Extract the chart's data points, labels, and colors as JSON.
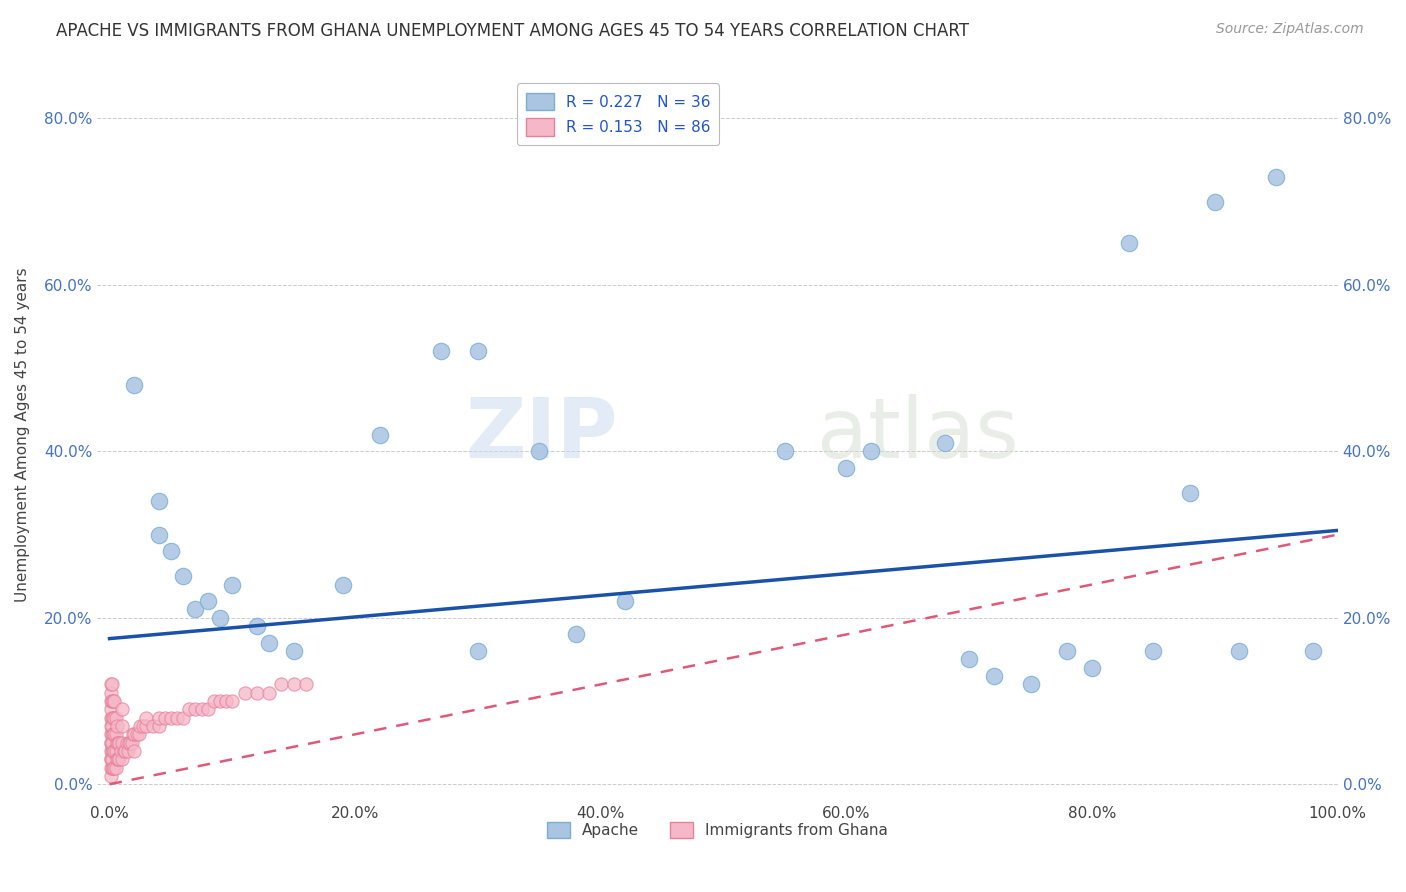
{
  "title": "APACHE VS IMMIGRANTS FROM GHANA UNEMPLOYMENT AMONG AGES 45 TO 54 YEARS CORRELATION CHART",
  "source": "Source: ZipAtlas.com",
  "xlabel": "",
  "ylabel": "Unemployment Among Ages 45 to 54 years",
  "xlim": [
    -0.01,
    1.0
  ],
  "ylim": [
    -0.02,
    0.86
  ],
  "xticks": [
    0.0,
    0.2,
    0.4,
    0.6,
    0.8,
    1.0
  ],
  "yticks": [
    0.0,
    0.2,
    0.4,
    0.6,
    0.8
  ],
  "xtick_labels": [
    "0.0%",
    "20.0%",
    "40.0%",
    "60.0%",
    "80.0%",
    "100.0%"
  ],
  "ytick_labels": [
    "0.0%",
    "20.0%",
    "40.0%",
    "60.0%",
    "80.0%"
  ],
  "background_color": "#ffffff",
  "watermark_zip": "ZIP",
  "watermark_atlas": "atlas",
  "apache_color": "#aac4e2",
  "ghana_color": "#f5b8c8",
  "apache_edge_color": "#7aafd4",
  "ghana_edge_color": "#e8809a",
  "trend_apache_color": "#1a52a8",
  "trend_ghana_color": "#e05878",
  "apache_trend_start_y": 0.175,
  "apache_trend_end_y": 0.305,
  "ghana_trend_start_y": 0.0,
  "ghana_trend_end_y": 0.3,
  "legend_apache_R": "R = 0.227",
  "legend_apache_N": "N = 36",
  "legend_ghana_R": "R = 0.153",
  "legend_ghana_N": "N = 86",
  "legend_label_apache": "Apache",
  "legend_label_ghana": "Immigrants from Ghana",
  "apache_x": [
    0.02,
    0.04,
    0.04,
    0.05,
    0.06,
    0.07,
    0.08,
    0.09,
    0.1,
    0.12,
    0.13,
    0.15,
    0.19,
    0.22,
    0.27,
    0.3,
    0.3,
    0.35,
    0.38,
    0.42,
    0.55,
    0.6,
    0.62,
    0.68,
    0.7,
    0.72,
    0.75,
    0.78,
    0.8,
    0.83,
    0.85,
    0.88,
    0.9,
    0.92,
    0.95,
    0.98
  ],
  "apache_y": [
    0.48,
    0.34,
    0.3,
    0.28,
    0.25,
    0.21,
    0.22,
    0.2,
    0.24,
    0.19,
    0.17,
    0.16,
    0.24,
    0.42,
    0.52,
    0.52,
    0.16,
    0.4,
    0.18,
    0.22,
    0.4,
    0.38,
    0.4,
    0.41,
    0.15,
    0.13,
    0.12,
    0.16,
    0.14,
    0.65,
    0.16,
    0.35,
    0.7,
    0.16,
    0.73,
    0.16
  ],
  "ghana_x": [
    0.001,
    0.001,
    0.001,
    0.001,
    0.001,
    0.001,
    0.001,
    0.001,
    0.001,
    0.001,
    0.001,
    0.001,
    0.001,
    0.001,
    0.002,
    0.002,
    0.002,
    0.002,
    0.002,
    0.002,
    0.002,
    0.002,
    0.002,
    0.003,
    0.003,
    0.003,
    0.003,
    0.003,
    0.004,
    0.004,
    0.004,
    0.004,
    0.004,
    0.005,
    0.005,
    0.005,
    0.005,
    0.006,
    0.006,
    0.006,
    0.007,
    0.007,
    0.008,
    0.008,
    0.009,
    0.01,
    0.01,
    0.01,
    0.01,
    0.012,
    0.013,
    0.014,
    0.015,
    0.016,
    0.017,
    0.018,
    0.019,
    0.02,
    0.02,
    0.022,
    0.024,
    0.025,
    0.027,
    0.03,
    0.03,
    0.035,
    0.04,
    0.04,
    0.045,
    0.05,
    0.055,
    0.06,
    0.065,
    0.07,
    0.075,
    0.08,
    0.085,
    0.09,
    0.095,
    0.1,
    0.11,
    0.12,
    0.13,
    0.14,
    0.15,
    0.16
  ],
  "ghana_y": [
    0.01,
    0.02,
    0.03,
    0.04,
    0.05,
    0.06,
    0.07,
    0.08,
    0.09,
    0.1,
    0.11,
    0.12,
    0.03,
    0.05,
    0.02,
    0.04,
    0.06,
    0.08,
    0.1,
    0.12,
    0.03,
    0.05,
    0.07,
    0.02,
    0.04,
    0.06,
    0.08,
    0.1,
    0.02,
    0.04,
    0.06,
    0.08,
    0.1,
    0.02,
    0.04,
    0.06,
    0.08,
    0.03,
    0.05,
    0.07,
    0.03,
    0.05,
    0.03,
    0.05,
    0.04,
    0.03,
    0.05,
    0.07,
    0.09,
    0.04,
    0.04,
    0.05,
    0.04,
    0.05,
    0.05,
    0.05,
    0.06,
    0.04,
    0.06,
    0.06,
    0.06,
    0.07,
    0.07,
    0.07,
    0.08,
    0.07,
    0.07,
    0.08,
    0.08,
    0.08,
    0.08,
    0.08,
    0.09,
    0.09,
    0.09,
    0.09,
    0.1,
    0.1,
    0.1,
    0.1,
    0.11,
    0.11,
    0.11,
    0.12,
    0.12,
    0.12
  ],
  "marker_size_apache": 140,
  "marker_size_ghana": 90,
  "title_fontsize": 12,
  "axis_label_fontsize": 11,
  "tick_fontsize": 11,
  "legend_fontsize": 11,
  "source_fontsize": 10
}
